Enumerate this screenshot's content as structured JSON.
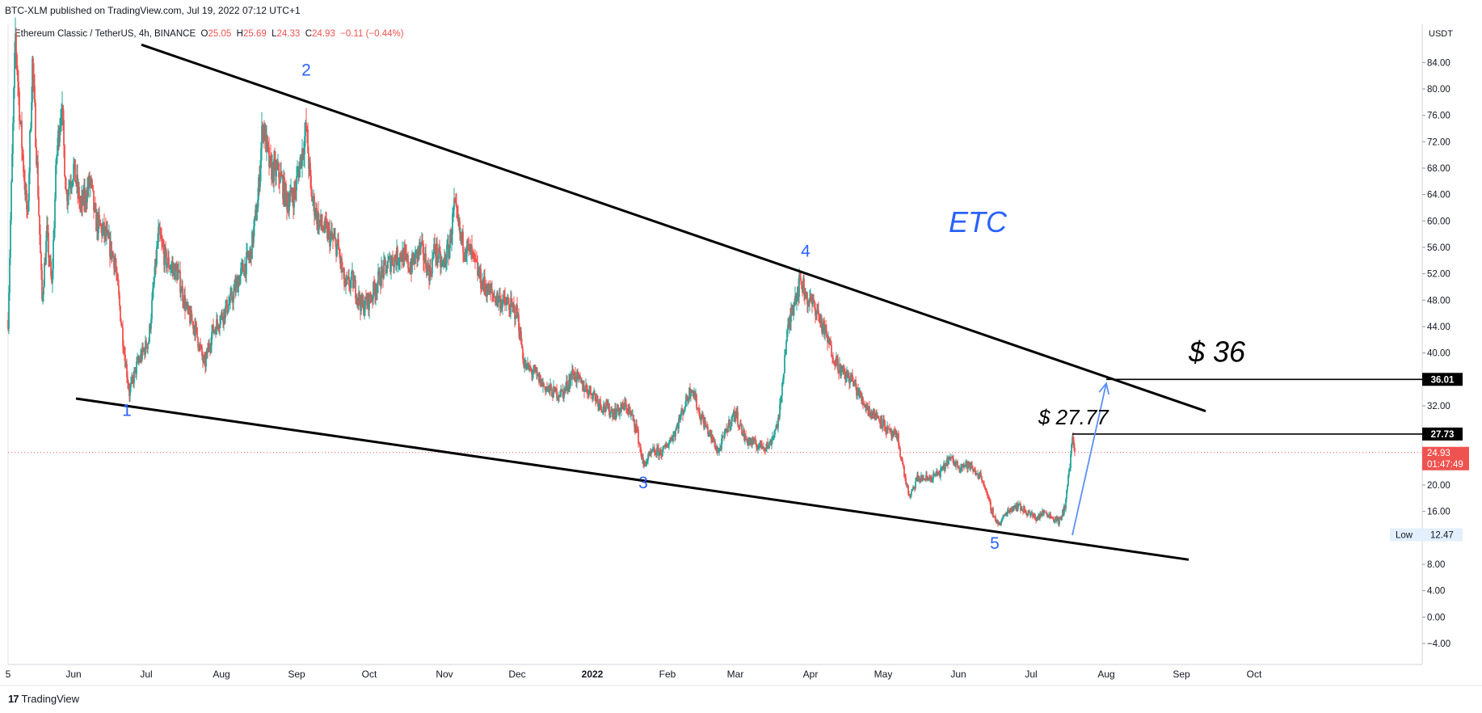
{
  "header": {
    "published": "BTC-XLM published on TradingView.com, Jul 19, 2022 07:12 UTC+1"
  },
  "legend": {
    "symbol": "Ethereum Classic / TetherUS, 4h, BINANCE",
    "o_label": "O",
    "o": "25.05",
    "h_label": "H",
    "h": "25.69",
    "l_label": "L",
    "l": "24.33",
    "c_label": "C",
    "c": "24.93",
    "change": "−0.11 (−0.44%)"
  },
  "footer": {
    "brand": "TradingView",
    "logo": "17"
  },
  "colors": {
    "up": "#26a69a",
    "down": "#ef5350",
    "wave_label": "#2962ff",
    "line": "#000000",
    "arrow": "#5b8ff9"
  },
  "chart_data": {
    "type": "candlestick",
    "instrument": "Ethereum Classic / TetherUS",
    "interval": "4h",
    "exchange": "BINANCE",
    "currency": "USDT",
    "y_ticks": [
      "84.00",
      "80.00",
      "76.00",
      "72.00",
      "68.00",
      "64.00",
      "60.00",
      "56.00",
      "52.00",
      "48.00",
      "44.00",
      "40.00",
      "36.00",
      "32.00",
      "28.00",
      "24.00",
      "20.00",
      "16.00",
      "12.00",
      "8.00",
      "4.00",
      "0.00",
      "−4.00"
    ],
    "y_tick_values": [
      84,
      80,
      76,
      72,
      68,
      64,
      60,
      56,
      52,
      48,
      44,
      40,
      36,
      32,
      28,
      24,
      20,
      16,
      12,
      8,
      4,
      0,
      -4
    ],
    "ylim": [
      -6,
      89
    ],
    "x_ticks": [
      {
        "label": "5",
        "date": "2021-05-05"
      },
      {
        "label": "Jun",
        "date": "2021-06-01"
      },
      {
        "label": "Jul",
        "date": "2021-07-01"
      },
      {
        "label": "Aug",
        "date": "2021-08-01"
      },
      {
        "label": "Sep",
        "date": "2021-09-01"
      },
      {
        "label": "Oct",
        "date": "2021-10-01"
      },
      {
        "label": "Nov",
        "date": "2021-11-01"
      },
      {
        "label": "Dec",
        "date": "2021-12-01"
      },
      {
        "label": "2022",
        "date": "2022-01-01",
        "bold": true
      },
      {
        "label": "Feb",
        "date": "2022-02-01"
      },
      {
        "label": "Mar",
        "date": "2022-03-01"
      },
      {
        "label": "Apr",
        "date": "2022-04-01"
      },
      {
        "label": "May",
        "date": "2022-05-01"
      },
      {
        "label": "Jun",
        "date": "2022-06-01"
      },
      {
        "label": "Jul",
        "date": "2022-07-01"
      },
      {
        "label": "Aug",
        "date": "2022-08-01"
      },
      {
        "label": "Sep",
        "date": "2022-09-01"
      },
      {
        "label": "Oct",
        "date": "2022-10-01"
      }
    ],
    "price_path": [
      [
        "2021-05-05",
        45
      ],
      [
        "2021-05-06",
        60
      ],
      [
        "2021-05-08",
        88
      ],
      [
        "2021-05-10",
        75
      ],
      [
        "2021-05-13",
        60
      ],
      [
        "2021-05-15",
        84
      ],
      [
        "2021-05-17",
        68
      ],
      [
        "2021-05-19",
        48
      ],
      [
        "2021-05-21",
        58
      ],
      [
        "2021-05-23",
        50
      ],
      [
        "2021-05-25",
        70
      ],
      [
        "2021-05-27",
        78
      ],
      [
        "2021-05-29",
        64
      ],
      [
        "2021-06-01",
        68
      ],
      [
        "2021-06-04",
        62
      ],
      [
        "2021-06-08",
        66
      ],
      [
        "2021-06-10",
        60
      ],
      [
        "2021-06-14",
        58
      ],
      [
        "2021-06-18",
        54
      ],
      [
        "2021-06-22",
        40
      ],
      [
        "2021-06-24",
        34
      ],
      [
        "2021-06-27",
        38
      ],
      [
        "2021-07-02",
        42
      ],
      [
        "2021-07-06",
        58
      ],
      [
        "2021-07-09",
        54
      ],
      [
        "2021-07-14",
        52
      ],
      [
        "2021-07-18",
        46
      ],
      [
        "2021-07-21",
        44
      ],
      [
        "2021-07-25",
        38
      ],
      [
        "2021-07-28",
        43
      ],
      [
        "2021-07-31",
        45
      ],
      [
        "2021-08-05",
        48
      ],
      [
        "2021-08-09",
        52
      ],
      [
        "2021-08-13",
        55
      ],
      [
        "2021-08-16",
        63
      ],
      [
        "2021-08-18",
        75
      ],
      [
        "2021-08-21",
        68
      ],
      [
        "2021-08-25",
        67
      ],
      [
        "2021-08-28",
        63
      ],
      [
        "2021-08-31",
        64
      ],
      [
        "2021-09-03",
        70
      ],
      [
        "2021-09-05",
        74
      ],
      [
        "2021-09-07",
        64
      ],
      [
        "2021-09-10",
        60
      ],
      [
        "2021-09-14",
        58
      ],
      [
        "2021-09-18",
        56
      ],
      [
        "2021-09-21",
        50
      ],
      [
        "2021-09-24",
        51
      ],
      [
        "2021-09-28",
        47
      ],
      [
        "2021-10-01",
        48
      ],
      [
        "2021-10-06",
        52
      ],
      [
        "2021-10-10",
        54
      ],
      [
        "2021-10-14",
        55
      ],
      [
        "2021-10-18",
        53
      ],
      [
        "2021-10-22",
        56
      ],
      [
        "2021-10-26",
        52
      ],
      [
        "2021-10-28",
        56
      ],
      [
        "2021-10-31",
        53
      ],
      [
        "2021-11-03",
        56
      ],
      [
        "2021-11-05",
        62
      ],
      [
        "2021-11-08",
        57
      ],
      [
        "2021-11-12",
        55
      ],
      [
        "2021-11-16",
        51
      ],
      [
        "2021-11-20",
        49
      ],
      [
        "2021-11-24",
        48
      ],
      [
        "2021-11-28",
        47
      ],
      [
        "2021-12-01",
        46
      ],
      [
        "2021-12-04",
        38
      ],
      [
        "2021-12-08",
        37
      ],
      [
        "2021-12-12",
        35
      ],
      [
        "2021-12-16",
        34
      ],
      [
        "2021-12-20",
        34
      ],
      [
        "2021-12-24",
        37
      ],
      [
        "2021-12-28",
        35
      ],
      [
        "2022-01-01",
        34
      ],
      [
        "2022-01-05",
        32
      ],
      [
        "2022-01-10",
        31
      ],
      [
        "2022-01-15",
        32
      ],
      [
        "2022-01-19",
        29
      ],
      [
        "2022-01-22",
        23
      ],
      [
        "2022-01-26",
        25
      ],
      [
        "2022-01-30",
        25
      ],
      [
        "2022-02-04",
        28
      ],
      [
        "2022-02-08",
        32
      ],
      [
        "2022-02-11",
        35
      ],
      [
        "2022-02-14",
        31
      ],
      [
        "2022-02-18",
        28
      ],
      [
        "2022-02-22",
        25
      ],
      [
        "2022-02-26",
        29
      ],
      [
        "2022-03-01",
        31
      ],
      [
        "2022-03-05",
        27
      ],
      [
        "2022-03-10",
        26
      ],
      [
        "2022-03-15",
        26
      ],
      [
        "2022-03-19",
        30
      ],
      [
        "2022-03-22",
        42
      ],
      [
        "2022-03-25",
        48
      ],
      [
        "2022-03-28",
        51
      ],
      [
        "2022-03-31",
        48
      ],
      [
        "2022-04-03",
        47
      ],
      [
        "2022-04-06",
        44
      ],
      [
        "2022-04-10",
        40
      ],
      [
        "2022-04-14",
        37
      ],
      [
        "2022-04-18",
        36
      ],
      [
        "2022-04-22",
        33
      ],
      [
        "2022-04-26",
        31
      ],
      [
        "2022-04-30",
        30
      ],
      [
        "2022-05-03",
        28
      ],
      [
        "2022-05-07",
        27
      ],
      [
        "2022-05-10",
        21
      ],
      [
        "2022-05-12",
        18
      ],
      [
        "2022-05-15",
        21
      ],
      [
        "2022-05-20",
        21
      ],
      [
        "2022-05-25",
        22
      ],
      [
        "2022-05-28",
        24
      ],
      [
        "2022-06-01",
        23
      ],
      [
        "2022-06-05",
        23
      ],
      [
        "2022-06-08",
        22
      ],
      [
        "2022-06-11",
        21
      ],
      [
        "2022-06-13",
        18
      ],
      [
        "2022-06-16",
        15
      ],
      [
        "2022-06-18",
        14
      ],
      [
        "2022-06-21",
        16
      ],
      [
        "2022-06-25",
        17
      ],
      [
        "2022-06-29",
        16
      ],
      [
        "2022-07-03",
        15
      ],
      [
        "2022-07-07",
        16
      ],
      [
        "2022-07-10",
        15
      ],
      [
        "2022-07-13",
        14.5
      ],
      [
        "2022-07-15",
        17
      ],
      [
        "2022-07-17",
        23
      ],
      [
        "2022-07-18",
        27.5
      ],
      [
        "2022-07-19",
        24.93
      ]
    ],
    "lines": [
      {
        "name": "upper-trendline",
        "from": {
          "date": "2021-06-29",
          "price": 86.7
        },
        "to": {
          "date": "2022-09-11",
          "price": 31.2
        }
      },
      {
        "name": "lower-trendline",
        "from": {
          "date": "2021-06-02",
          "price": 33.1
        },
        "to": {
          "date": "2022-09-04",
          "price": 8.7
        }
      }
    ],
    "wave_labels": [
      {
        "label": "1",
        "date": "2021-06-23",
        "price": 30.5
      },
      {
        "label": "2",
        "date": "2021-09-05",
        "price": 82.0
      },
      {
        "label": "3",
        "date": "2022-01-22",
        "price": 19.5
      },
      {
        "label": "4",
        "date": "2022-03-30",
        "price": 54.6
      },
      {
        "label": "5",
        "date": "2022-06-16",
        "price": 10.3
      }
    ],
    "text_annotations": [
      {
        "text": "ETC",
        "date": "2022-05-28",
        "price": 58.3,
        "style": "italic",
        "color": "#2962ff",
        "size": 36
      },
      {
        "text": "$ 36",
        "date": "2022-09-04",
        "price": 38.7,
        "style": "italic",
        "color": "#000000",
        "size": 36
      },
      {
        "text": "$ 27.77",
        "date": "2022-07-04",
        "price": 29.2,
        "style": "italic",
        "color": "#000000",
        "size": 26
      }
    ],
    "horizontal_rays": [
      {
        "name": "target-36",
        "from_date": "2022-08-01",
        "price": 36.01,
        "label": "36.01"
      },
      {
        "name": "level-27",
        "from_date": "2022-07-18",
        "price": 27.73,
        "label": "27.73"
      }
    ],
    "arrow": {
      "from": {
        "date": "2022-07-18",
        "price": 12.4
      },
      "to": {
        "date": "2022-08-01",
        "price": 35.4
      }
    },
    "current_price": {
      "price": 24.93,
      "label": "24.93",
      "countdown": "01:47:49"
    },
    "low_marker": {
      "label": "Low",
      "price": 12.47,
      "value": "12.47"
    }
  }
}
